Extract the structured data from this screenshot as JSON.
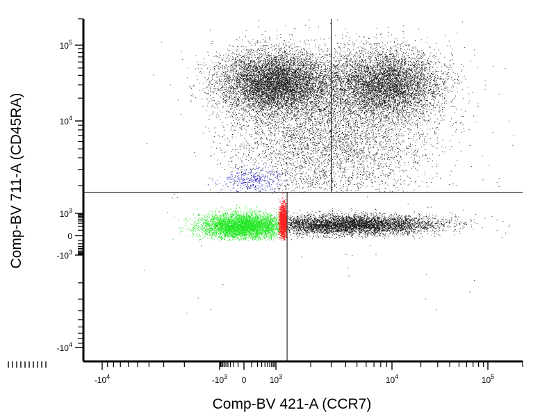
{
  "chart_data": {
    "type": "scatter",
    "title": "",
    "xlabel": "Comp-BV 421-A (CCR7)",
    "ylabel": "Comp-BV 711-A (CD45RA)",
    "x_scale": "biexponential",
    "y_scale": "biexponential",
    "xlim": [
      -15000,
      200000
    ],
    "ylim": [
      -13000,
      200000
    ],
    "x_ticks": [
      {
        "base": "-10",
        "exp": "4"
      },
      {
        "base": "-10",
        "exp": "3"
      },
      {
        "base": "0",
        "exp": ""
      },
      {
        "base": "10",
        "exp": "3"
      },
      {
        "base": "10",
        "exp": "4"
      },
      {
        "base": "10",
        "exp": "5"
      }
    ],
    "y_ticks": [
      {
        "base": "10",
        "exp": "5"
      },
      {
        "base": "10",
        "exp": "4"
      },
      {
        "base": "10",
        "exp": "3"
      },
      {
        "base": "0",
        "exp": ""
      },
      {
        "base": "-10",
        "exp": "3"
      },
      {
        "base": "-10",
        "exp": "4"
      }
    ],
    "quadrant_gates": [
      {
        "x": 3000,
        "y": 1700
      },
      {
        "x": 1250,
        "y": 1700
      }
    ],
    "populations": [
      {
        "color": "#1a1a1a",
        "description_region": "CD45RA high, CCR7 low (upper left cluster)"
      },
      {
        "color": "#1a1a1a",
        "description_region": "CD45RA high, CCR7 high (upper right cluster)"
      },
      {
        "color": "#1a1a1a",
        "description_region": "CD45RA low, CCR7 high (lower right band)"
      },
      {
        "color": "#22e822",
        "description_region": "CD45RA low, CCR7 low"
      },
      {
        "color": "#ff2222",
        "description_region": "CD45RA low, CCR7 boundary"
      },
      {
        "color": "#2222cc",
        "description_region": "CD45RA mid, CCR7 low"
      }
    ]
  }
}
